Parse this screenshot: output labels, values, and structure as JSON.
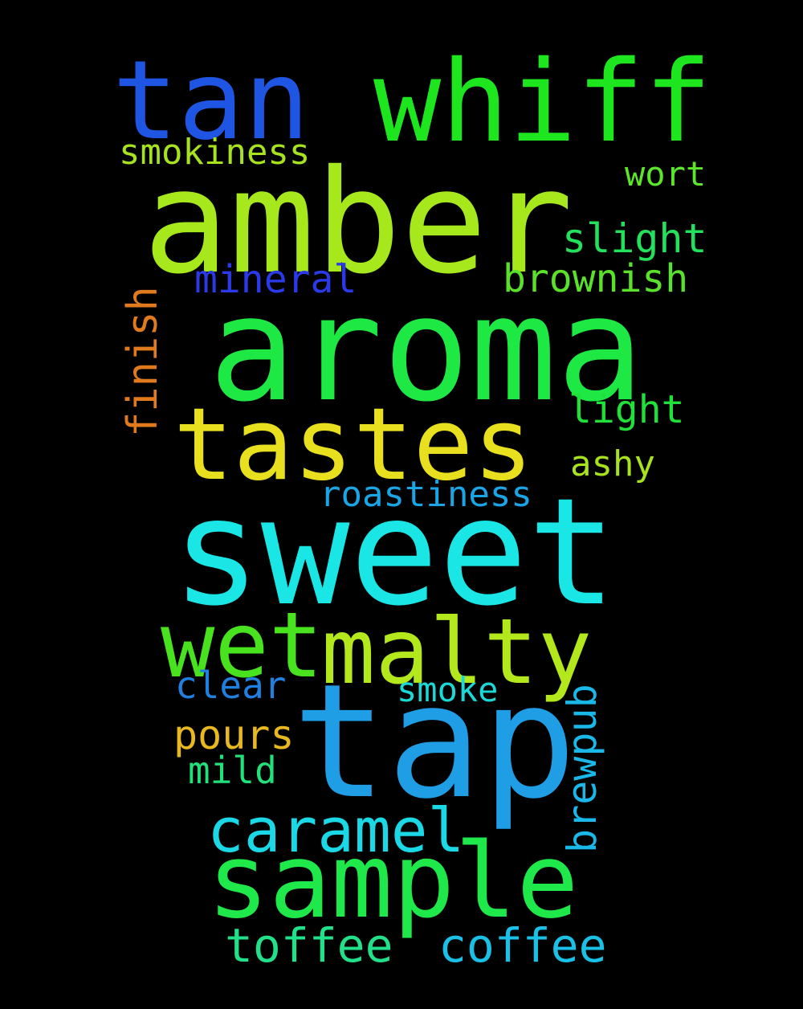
{
  "words": [
    {
      "key": "tan",
      "text": "tan",
      "color": "#1f55e3"
    },
    {
      "key": "whiff",
      "text": "whiff",
      "color": "#1de61f"
    },
    {
      "key": "smokiness",
      "text": "smokiness",
      "color": "#a6e21e"
    },
    {
      "key": "amber",
      "text": "amber",
      "color": "#a6e81c"
    },
    {
      "key": "wort",
      "text": "wort",
      "color": "#5ce62a"
    },
    {
      "key": "slight",
      "text": "slight",
      "color": "#24e15c"
    },
    {
      "key": "mineral",
      "text": "mineral",
      "color": "#2a3ae8"
    },
    {
      "key": "brownish",
      "text": "brownish",
      "color": "#5ae22b"
    },
    {
      "key": "finish",
      "text": "finish",
      "color": "#e07a1c"
    },
    {
      "key": "aroma",
      "text": "aroma",
      "color": "#1ee844"
    },
    {
      "key": "light",
      "text": "light",
      "color": "#22e03a"
    },
    {
      "key": "tastes",
      "text": "tastes",
      "color": "#e8e01e"
    },
    {
      "key": "ashy",
      "text": "ashy",
      "color": "#a8e21e"
    },
    {
      "key": "roastiness",
      "text": "roastiness",
      "color": "#1aa6e6"
    },
    {
      "key": "sweet",
      "text": "sweet",
      "color": "#1ae6e6"
    },
    {
      "key": "wet",
      "text": "wet",
      "color": "#48e21e"
    },
    {
      "key": "malty",
      "text": "malty",
      "color": "#b2e81c"
    },
    {
      "key": "clear",
      "text": "clear",
      "color": "#1f80e0"
    },
    {
      "key": "smoke",
      "text": "smoke",
      "color": "#1ad9d6"
    },
    {
      "key": "tap",
      "text": "tap",
      "color": "#1f9ee6"
    },
    {
      "key": "brewpub",
      "text": "brewpub",
      "color": "#1ab8e8"
    },
    {
      "key": "pours",
      "text": "pours",
      "color": "#e8b81e"
    },
    {
      "key": "mild",
      "text": "mild",
      "color": "#22e07a"
    },
    {
      "key": "caramel",
      "text": "caramel",
      "color": "#1ad8e6"
    },
    {
      "key": "sample",
      "text": "sample",
      "color": "#1ee84a"
    },
    {
      "key": "toffee",
      "text": "toffee",
      "color": "#22e08a"
    },
    {
      "key": "coffee",
      "text": "coffee",
      "color": "#1ac0e6"
    }
  ]
}
